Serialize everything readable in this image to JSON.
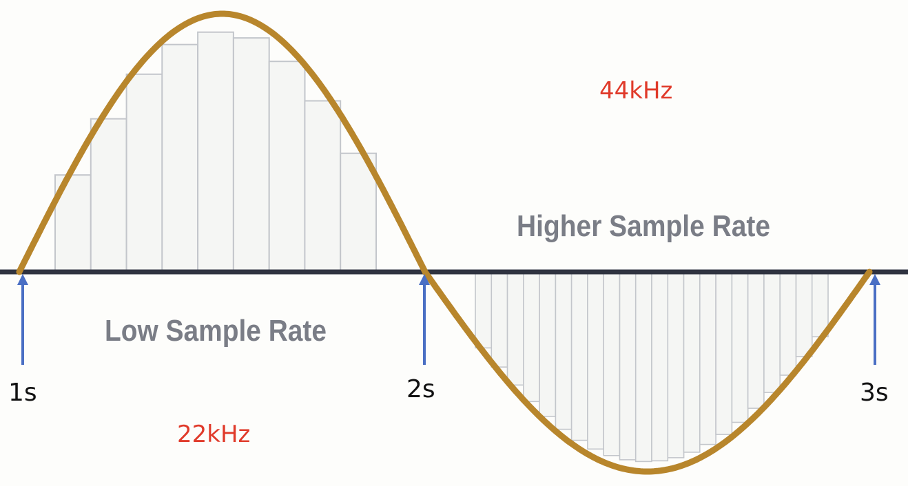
{
  "labels": {
    "low_rate_text": "Low Sample Rate",
    "high_rate_text": "Higher Sample Rate",
    "low_rate_freq": "22kHz",
    "high_rate_freq": "44kHz"
  },
  "time_markers": [
    "1s",
    "2s",
    "3s"
  ],
  "colors": {
    "wave": "#b8862c",
    "axis": "#2f3340",
    "arrow": "#4a6fc4",
    "rate_text": "#e03a2a",
    "bar_fill": "#f5f6f4",
    "bar_stroke": "#c3c6cb",
    "label_gray": "#7a7d86"
  },
  "chart_data": {
    "type": "diagram",
    "waveform": "sine",
    "periods": 1,
    "low_rate_samples_per_half_period": 9,
    "high_rate_samples_per_half_period": 22
  }
}
